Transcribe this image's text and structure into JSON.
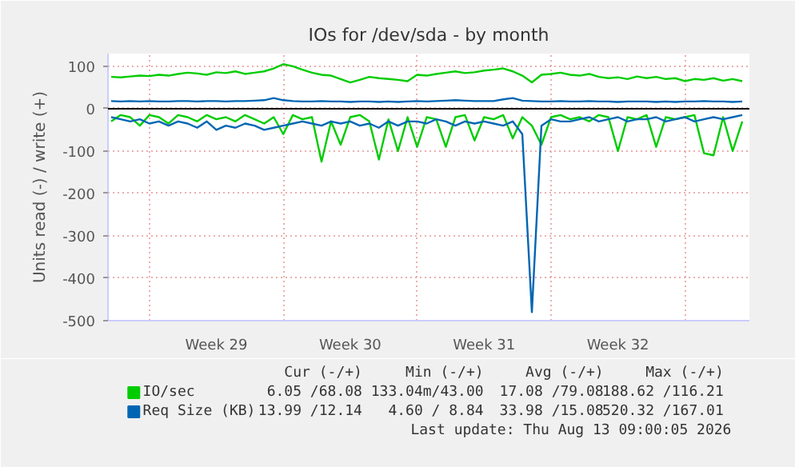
{
  "chart_data": {
    "type": "line",
    "title": "IOs for /dev/sda - by month",
    "ylabel": "Units read (-) / write (+)",
    "x": [
      "2026-07-11T00:00",
      "2026-07-11T12:00",
      "2026-07-12T00:00",
      "2026-07-12T12:00",
      "2026-07-13T00:00",
      "2026-07-13T12:00",
      "2026-07-14T00:00",
      "2026-07-14T12:00",
      "2026-07-15T00:00",
      "2026-07-15T12:00",
      "2026-07-16T00:00",
      "2026-07-16T12:00",
      "2026-07-17T00:00",
      "2026-07-17T12:00",
      "2026-07-18T00:00",
      "2026-07-18T12:00",
      "2026-07-19T00:00",
      "2026-07-19T12:00",
      "2026-07-20T00:00",
      "2026-07-20T12:00",
      "2026-07-21T00:00",
      "2026-07-21T12:00",
      "2026-07-22T00:00",
      "2026-07-22T12:00",
      "2026-07-23T00:00",
      "2026-07-23T12:00",
      "2026-07-24T00:00",
      "2026-07-24T12:00",
      "2026-07-25T00:00",
      "2026-07-25T12:00",
      "2026-07-26T00:00",
      "2026-07-26T12:00",
      "2026-07-27T00:00",
      "2026-07-27T12:00",
      "2026-07-28T00:00",
      "2026-07-28T12:00",
      "2026-07-29T00:00",
      "2026-07-29T12:00",
      "2026-07-30T00:00",
      "2026-07-30T12:00",
      "2026-07-31T00:00",
      "2026-07-31T12:00",
      "2026-08-01T00:00",
      "2026-08-01T12:00",
      "2026-08-02T00:00",
      "2026-08-02T12:00",
      "2026-08-03T00:00",
      "2026-08-03T12:00",
      "2026-08-04T00:00",
      "2026-08-04T12:00",
      "2026-08-05T00:00",
      "2026-08-05T12:00",
      "2026-08-06T00:00",
      "2026-08-06T12:00",
      "2026-08-07T00:00",
      "2026-08-07T12:00",
      "2026-08-08T00:00",
      "2026-08-08T12:00",
      "2026-08-09T00:00",
      "2026-08-09T12:00",
      "2026-08-10T00:00",
      "2026-08-10T12:00",
      "2026-08-11T00:00",
      "2026-08-11T12:00",
      "2026-08-12T00:00",
      "2026-08-12T12:00",
      "2026-08-13T00:00"
    ],
    "xlim": [
      "2026-07-10T20:00",
      "2026-08-13T09:00"
    ],
    "xticks": [
      {
        "value": "2026-07-13",
        "label": null
      },
      {
        "value": "2026-07-16T12:00",
        "label": "Week 29"
      },
      {
        "value": "2026-07-20",
        "label": null
      },
      {
        "value": "2026-07-23T12:00",
        "label": "Week 30"
      },
      {
        "value": "2026-07-27",
        "label": null
      },
      {
        "value": "2026-07-30T12:00",
        "label": "Week 31"
      },
      {
        "value": "2026-08-03",
        "label": null
      },
      {
        "value": "2026-08-06T12:00",
        "label": "Week 32"
      },
      {
        "value": "2026-08-10",
        "label": null
      }
    ],
    "ylim": [
      -500,
      130
    ],
    "yticks": [
      -500,
      -400,
      -300,
      -200,
      -100,
      0,
      100
    ],
    "grid": true,
    "legend": "bottom",
    "ref_lines": [
      {
        "axis": "y",
        "value": 0,
        "color": "#000000"
      }
    ],
    "series": [
      {
        "name": "IO/sec",
        "color": "#00cc00",
        "values": [
          75,
          74,
          76,
          78,
          77,
          80,
          78,
          82,
          85,
          83,
          80,
          86,
          84,
          88,
          82,
          85,
          88,
          95,
          105,
          100,
          92,
          85,
          80,
          78,
          70,
          62,
          68,
          75,
          72,
          70,
          68,
          65,
          80,
          78,
          82,
          85,
          88,
          84,
          86,
          90,
          92,
          95,
          88,
          78,
          62,
          80,
          82,
          85,
          80,
          78,
          82,
          75,
          72,
          74,
          70,
          76,
          72,
          75,
          70,
          72,
          65,
          70,
          68,
          72,
          66,
          70,
          65
        ]
      },
      {
        "color": "#00cc00",
        "values": [
          -30,
          -15,
          -20,
          -40,
          -15,
          -20,
          -35,
          -15,
          -20,
          -30,
          -15,
          -25,
          -20,
          -30,
          -15,
          -25,
          -35,
          -20,
          -60,
          -15,
          -25,
          -20,
          -125,
          -30,
          -85,
          -20,
          -15,
          -30,
          -120,
          -25,
          -100,
          -20,
          -90,
          -20,
          -25,
          -90,
          -20,
          -15,
          -75,
          -20,
          -25,
          -15,
          -70,
          -20,
          -40,
          -85,
          -20,
          -15,
          -25,
          -20,
          -30,
          -15,
          -20,
          -100,
          -20,
          -25,
          -15,
          -90,
          -20,
          -25,
          -20,
          -15,
          -105,
          -110,
          -20,
          -100,
          -30
        ]
      },
      {
        "name": "Req Size (KB)",
        "color": "#0066b3",
        "values": [
          18,
          17,
          18,
          17,
          18,
          17,
          17,
          18,
          18,
          17,
          18,
          18,
          17,
          18,
          18,
          19,
          20,
          25,
          20,
          18,
          17,
          17,
          18,
          17,
          17,
          16,
          17,
          17,
          16,
          17,
          16,
          17,
          18,
          17,
          18,
          19,
          20,
          19,
          18,
          18,
          18,
          22,
          25,
          19,
          18,
          17,
          17,
          18,
          17,
          17,
          18,
          17,
          17,
          16,
          17,
          17,
          17,
          16,
          17,
          16,
          17,
          17,
          18,
          17,
          17,
          16,
          17
        ]
      },
      {
        "color": "#0066b3",
        "values": [
          -20,
          -25,
          -30,
          -25,
          -35,
          -30,
          -40,
          -30,
          -35,
          -45,
          -30,
          -50,
          -40,
          -45,
          -35,
          -40,
          -50,
          -45,
          -40,
          -35,
          -30,
          -35,
          -40,
          -30,
          -35,
          -30,
          -40,
          -35,
          -45,
          -30,
          -40,
          -30,
          -30,
          -35,
          -25,
          -30,
          -40,
          -30,
          -35,
          -30,
          -35,
          -40,
          -30,
          -60,
          -480,
          -40,
          -25,
          -30,
          -30,
          -25,
          -20,
          -30,
          -25,
          -20,
          -30,
          -25,
          -25,
          -20,
          -30,
          -25,
          -20,
          -30,
          -25,
          -20,
          -25,
          -20,
          -15
        ]
      }
    ],
    "annotations": [
      "Cur (-/+)",
      "Min (-/+)",
      "Avg (-/+)",
      "Max (-/+)",
      "6.05 /68.08",
      "133.04m/43.00",
      "17.08 /79.08",
      "188.62 /116.21",
      "13.99 /12.14",
      "4.60 / 8.84",
      "33.98 /15.08",
      "520.32 /167.01",
      "Last update: Thu Aug 13 09:00:05 2026"
    ]
  }
}
